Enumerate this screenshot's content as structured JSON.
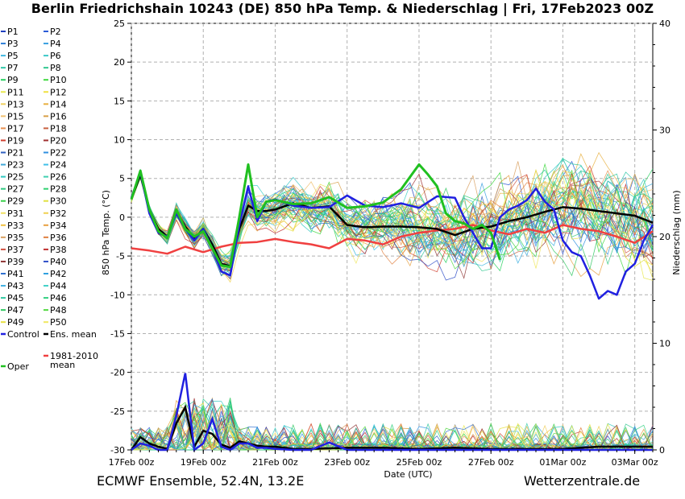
{
  "title": "Berlin Friedrichshain 10243 (DE)  850 hPa Temp. & Niederschlag | Fri, 17Feb2023 00Z",
  "footer_left": "ECMWF Ensemble, 52.4N, 13.2E",
  "footer_right": "Wetterzentrale.de",
  "chart_data": {
    "type": "line",
    "x_unit": "days since 17Feb 00z",
    "xlabel": "Date (UTC)",
    "ylabel_left": "850 hPa Temp. (°C)",
    "ylabel_right": "Niederschlag (mm)",
    "ylim_left": [
      -30,
      25
    ],
    "ylim_right": [
      0,
      40
    ],
    "xlim": [
      0,
      14.5
    ],
    "grid": true,
    "legend_position": "left",
    "x_ticks": [
      {
        "x": 0,
        "label": "17Feb 00z"
      },
      {
        "x": 2,
        "label": "19Feb 00z"
      },
      {
        "x": 4,
        "label": "21Feb 00z"
      },
      {
        "x": 6,
        "label": "23Feb 00z"
      },
      {
        "x": 8,
        "label": "25Feb 00z"
      },
      {
        "x": 10,
        "label": "27Feb 00z"
      },
      {
        "x": 12,
        "label": "01Mar 00z"
      },
      {
        "x": 14,
        "label": "03Mar 00z"
      }
    ],
    "y_ticks_left": [
      25,
      20,
      15,
      10,
      5,
      0,
      -5,
      -10,
      -15,
      -20,
      -25,
      -30
    ],
    "y_ticks_right": [
      40,
      30,
      20,
      10,
      0
    ],
    "legend": [
      {
        "label": "P1",
        "color": "#1f3fbf"
      },
      {
        "label": "P2",
        "color": "#2a5bd7"
      },
      {
        "label": "P3",
        "color": "#2f7fd8"
      },
      {
        "label": "P4",
        "color": "#3aa0e0"
      },
      {
        "label": "P5",
        "color": "#40b8e0"
      },
      {
        "label": "P6",
        "color": "#3cc8c8"
      },
      {
        "label": "P7",
        "color": "#30c8a8"
      },
      {
        "label": "P8",
        "color": "#30c890"
      },
      {
        "label": "P9",
        "color": "#28d060"
      },
      {
        "label": "P10",
        "color": "#40d840"
      },
      {
        "label": "P11",
        "color": "#e8e850"
      },
      {
        "label": "P12",
        "color": "#f0e040"
      },
      {
        "label": "P13",
        "color": "#f0d060"
      },
      {
        "label": "P14",
        "color": "#e8b040"
      },
      {
        "label": "P15",
        "color": "#f0c070"
      },
      {
        "label": "P16",
        "color": "#d8a048"
      },
      {
        "label": "P17",
        "color": "#e89050"
      },
      {
        "label": "P18",
        "color": "#c86040"
      },
      {
        "label": "P19",
        "color": "#d04030"
      },
      {
        "label": "P20",
        "color": "#a03030"
      },
      {
        "label": "P21",
        "color": "#3060c0"
      },
      {
        "label": "P22",
        "color": "#3090e0"
      },
      {
        "label": "P23",
        "color": "#40a8d8"
      },
      {
        "label": "P24",
        "color": "#40c0e8"
      },
      {
        "label": "P25",
        "color": "#30c8c0"
      },
      {
        "label": "P26",
        "color": "#40d0b0"
      },
      {
        "label": "P27",
        "color": "#30c880"
      },
      {
        "label": "P28",
        "color": "#30d070"
      },
      {
        "label": "P29",
        "color": "#38d048"
      },
      {
        "label": "P30",
        "color": "#e0e040"
      },
      {
        "label": "P31",
        "color": "#f0e060"
      },
      {
        "label": "P32",
        "color": "#f0d050"
      },
      {
        "label": "P33",
        "color": "#f0c040"
      },
      {
        "label": "P34",
        "color": "#e8a040"
      },
      {
        "label": "P35",
        "color": "#d8a060"
      },
      {
        "label": "P36",
        "color": "#e08040"
      },
      {
        "label": "P37",
        "color": "#d05040"
      },
      {
        "label": "P38",
        "color": "#c03030"
      },
      {
        "label": "P39",
        "color": "#903838"
      },
      {
        "label": "P40",
        "color": "#3050c8"
      },
      {
        "label": "P41",
        "color": "#3070d0"
      },
      {
        "label": "P42",
        "color": "#30a0e0"
      },
      {
        "label": "P43",
        "color": "#40b0e0"
      },
      {
        "label": "P44",
        "color": "#40d0c8"
      },
      {
        "label": "P45",
        "color": "#30c8a0"
      },
      {
        "label": "P46",
        "color": "#30d080"
      },
      {
        "label": "P47",
        "color": "#30c860"
      },
      {
        "label": "P48",
        "color": "#50d840"
      },
      {
        "label": "P49",
        "color": "#e8e040"
      },
      {
        "label": "P50",
        "color": "#f0e860"
      },
      {
        "label": "Control",
        "color": "#2020e0"
      },
      {
        "label": "Ens. mean",
        "color": "#000000"
      },
      {
        "label": "1981-2010 mean",
        "color": "#f04040"
      },
      {
        "label": "Oper",
        "color": "#20c020"
      }
    ],
    "series": [
      {
        "name": "Control",
        "x": [
          0,
          0.25,
          0.5,
          0.75,
          1,
          1.25,
          1.5,
          1.75,
          2,
          2.25,
          2.5,
          2.75,
          3,
          3.25,
          3.5,
          3.75,
          4,
          4.5,
          5,
          5.5,
          6,
          6.5,
          7,
          7.5,
          8,
          8.5,
          9,
          9.25,
          9.5,
          9.75,
          10,
          10.25,
          10.5,
          10.75,
          11,
          11.25,
          11.5,
          11.75,
          12,
          12.25,
          12.5,
          12.75,
          13,
          13.25,
          13.5,
          13.75,
          14,
          14.25,
          14.5
        ],
        "y": [
          2.5,
          5.8,
          0.5,
          -2,
          -2.5,
          0.5,
          -1.5,
          -3,
          -1.5,
          -4,
          -7,
          -7.5,
          -1,
          4,
          -0.5,
          2,
          2.3,
          1.5,
          1.2,
          1.3,
          2.8,
          1.5,
          1.3,
          1.8,
          1.2,
          2.7,
          2.5,
          0,
          -2,
          -4,
          -4,
          0,
          1,
          1.5,
          2.2,
          3.7,
          2,
          1,
          -3,
          -4.5,
          -5,
          -7.5,
          -10.5,
          -9.5,
          -10,
          -7,
          -6,
          -3,
          -1
        ]
      },
      {
        "name": "Ens. mean",
        "x": [
          0,
          0.25,
          0.5,
          0.75,
          1,
          1.25,
          1.5,
          1.75,
          2,
          2.25,
          2.5,
          2.75,
          3,
          3.25,
          3.5,
          3.75,
          4,
          4.5,
          5,
          5.5,
          6,
          6.5,
          7,
          7.5,
          8,
          8.5,
          9,
          9.5,
          10,
          10.5,
          11,
          11.5,
          12,
          12.5,
          13,
          13.5,
          14,
          14.5
        ],
        "y": [
          2.3,
          5.5,
          1,
          -1.5,
          -2.5,
          0.8,
          -1.2,
          -2.8,
          -1.5,
          -3.5,
          -6,
          -6.3,
          -1.5,
          1.5,
          0.8,
          0.8,
          1.0,
          1.8,
          1.2,
          1.4,
          -1.0,
          -1.3,
          -1.2,
          -1.2,
          -1.3,
          -1.5,
          -2.3,
          -1.5,
          -1.2,
          -0.5,
          0,
          0.7,
          1.3,
          1.1,
          0.8,
          0.5,
          0.2,
          -0.7
        ]
      },
      {
        "name": "1981-2010 mean",
        "x": [
          0,
          0.5,
          1,
          1.5,
          2,
          2.5,
          3,
          3.5,
          4,
          4.5,
          5,
          5.5,
          6,
          6.5,
          7,
          7.5,
          8,
          8.5,
          9,
          9.5,
          10,
          10.5,
          11,
          11.5,
          12,
          12.5,
          13,
          13.5,
          14,
          14.5
        ],
        "y": [
          -4,
          -4.3,
          -4.7,
          -3.8,
          -4.5,
          -3.8,
          -3.3,
          -3.2,
          -2.8,
          -3.2,
          -3.5,
          -4,
          -2.8,
          -3,
          -3.5,
          -2.5,
          -2,
          -1.7,
          -1.5,
          -1,
          -1.7,
          -2.2,
          -1.5,
          -2,
          -1,
          -1.5,
          -1.8,
          -2.5,
          -3.3,
          -1.8
        ]
      },
      {
        "name": "Oper",
        "x": [
          0,
          0.25,
          0.5,
          0.75,
          1,
          1.25,
          1.5,
          1.75,
          2,
          2.25,
          2.5,
          2.75,
          3,
          3.25,
          3.5,
          3.75,
          4,
          4.5,
          5,
          5.5,
          6,
          6.5,
          7,
          7.5,
          8,
          8.25,
          8.5,
          8.75,
          9,
          9.25,
          9.5,
          9.75,
          10,
          10.25
        ],
        "y": [
          2.3,
          6,
          1,
          -1.8,
          -2.7,
          1,
          -1.5,
          -2.5,
          -1.8,
          -4,
          -6.2,
          -6.4,
          0,
          6.8,
          0,
          2,
          2.2,
          1.7,
          1.8,
          2.6,
          1.2,
          1.4,
          1.9,
          3.6,
          6.8,
          5.5,
          4,
          0.5,
          -0.5,
          -0.8,
          -1.5,
          -1,
          -2,
          -5.5
        ]
      }
    ],
    "precip_series": [
      {
        "name": "Ens. mean",
        "x": [
          0,
          0.25,
          0.5,
          0.75,
          1,
          1.25,
          1.5,
          1.75,
          2,
          2.25,
          2.5,
          2.75,
          3,
          3.25,
          3.5,
          3.75,
          4,
          4.5,
          5,
          6,
          7,
          8,
          9,
          10,
          11,
          12,
          13,
          14,
          14.5
        ],
        "y": [
          0,
          1.2,
          0.6,
          0.3,
          0.1,
          2.5,
          4,
          0.3,
          1.8,
          1.5,
          0.5,
          0.2,
          0.8,
          0.6,
          0.4,
          0.3,
          0.3,
          0.1,
          0.1,
          0.2,
          0.2,
          0.1,
          0.2,
          0.1,
          0.1,
          0.1,
          0.3,
          0.3,
          0.3
        ]
      },
      {
        "name": "Control",
        "x": [
          0,
          0.25,
          0.5,
          0.75,
          1,
          1.25,
          1.5,
          1.75,
          2,
          2.25,
          2.5,
          2.75,
          3,
          3.25,
          3.5,
          3.75,
          4,
          4.5,
          5,
          5.5,
          6,
          7,
          8,
          9,
          10,
          11,
          12,
          13,
          14,
          14.5
        ],
        "y": [
          0,
          0.6,
          0.4,
          0,
          0,
          3.2,
          7.2,
          0,
          0.6,
          2.9,
          0.3,
          0,
          0.6,
          0.6,
          0.2,
          0.2,
          0.1,
          0,
          0,
          0.7,
          0,
          0,
          0,
          0,
          0,
          0,
          0,
          0,
          0,
          0
        ]
      }
    ]
  }
}
